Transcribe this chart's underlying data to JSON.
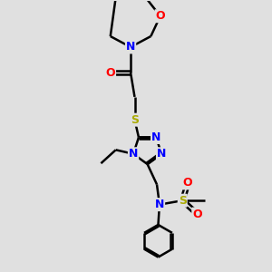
{
  "bg_color": "#e0e0e0",
  "bond_color": "#000000",
  "atom_colors": {
    "N": "#0000ff",
    "O": "#ff0000",
    "S": "#aaaa00",
    "C": "#000000"
  },
  "bond_lw": 1.8,
  "figsize": [
    3.0,
    3.0
  ],
  "dpi": 100,
  "xlim": [
    0,
    10
  ],
  "ylim": [
    0,
    10
  ],
  "font_size": 9
}
